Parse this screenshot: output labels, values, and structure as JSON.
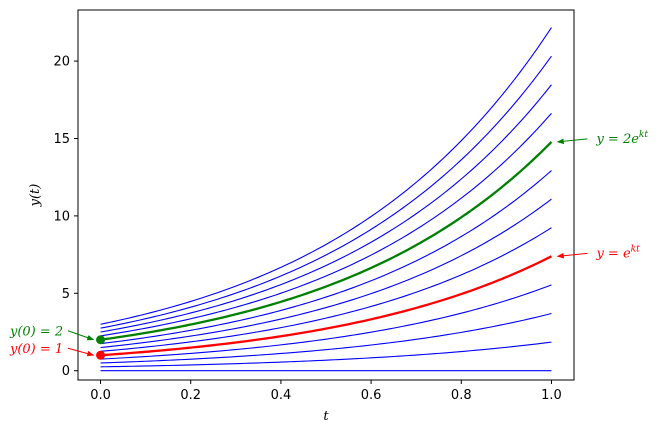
{
  "chart_data": {
    "type": "line",
    "xlabel": "t",
    "ylabel": "y(t)",
    "xlim": [
      -0.05,
      1.05
    ],
    "ylim": [
      -0.6,
      23.3
    ],
    "xticks": [
      0.0,
      0.2,
      0.4,
      0.6,
      0.8,
      1.0
    ],
    "xtick_labels": [
      "0.0",
      "0.2",
      "0.4",
      "0.6",
      "0.8",
      "1.0"
    ],
    "yticks": [
      0,
      5,
      10,
      15,
      20
    ],
    "ytick_labels": [
      "0",
      "5",
      "10",
      "15",
      "20"
    ],
    "grid": false,
    "k": 2,
    "family": {
      "color": "#0000ff",
      "initial_values": [
        0.0,
        0.25,
        0.5,
        0.75,
        1.25,
        1.5,
        1.75,
        2.25,
        2.5,
        2.75,
        3.0
      ]
    },
    "highlighted": [
      {
        "y0": 1,
        "color": "#ff0000",
        "curve_label_main": "y = e",
        "curve_label_sup": "kt",
        "point_label": "y(0) = 1"
      },
      {
        "y0": 2,
        "color": "#008000",
        "curve_label_main": "y = 2e",
        "curve_label_sup": "kt",
        "point_label": "y(0) = 2"
      }
    ]
  }
}
